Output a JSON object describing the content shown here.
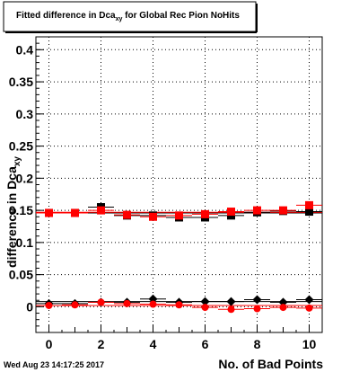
{
  "chart_data": {
    "type": "scatter",
    "title": {
      "pre": "Fitted difference in Dca",
      "sub": "xy",
      "post": " for Global Rec Pion NoHits"
    },
    "xlabel": "No. of Bad Points",
    "ylabel": "difference in Dca",
    "ylabel_sub": "xy",
    "xlim": [
      -0.5,
      10.5
    ],
    "ylim": [
      -0.04,
      0.42
    ],
    "x_ticks": [
      0,
      2,
      4,
      6,
      8,
      10
    ],
    "y_ticks": [
      0,
      0.05,
      0.1,
      0.15,
      0.2,
      0.25,
      0.3,
      0.35,
      0.4
    ],
    "y_tick_labels": [
      "0",
      "0.05",
      "0.1",
      "0.15",
      "0.2",
      "0.25",
      "0.3",
      "0.35",
      "0.4"
    ],
    "grid": true,
    "series": [
      {
        "marker": "square",
        "color": "#000000",
        "x": [
          0,
          1,
          2,
          3,
          4,
          5,
          6,
          7,
          8,
          9,
          10
        ],
        "y": [
          0.146,
          0.146,
          0.155,
          0.142,
          0.142,
          0.139,
          0.139,
          0.142,
          0.147,
          0.149,
          0.148
        ],
        "fit": 0.146
      },
      {
        "marker": "square",
        "color": "#ff0000",
        "x": [
          0,
          1,
          2,
          3,
          4,
          5,
          6,
          7,
          8,
          9,
          10
        ],
        "y": [
          0.146,
          0.146,
          0.15,
          0.143,
          0.14,
          0.142,
          0.144,
          0.148,
          0.15,
          0.15,
          0.158
        ],
        "fit": 0.147
      },
      {
        "marker": "diamond",
        "color": "#000000",
        "x": [
          0,
          1,
          2,
          3,
          4,
          5,
          6,
          7,
          8,
          9,
          10
        ],
        "y": [
          0.005,
          0.005,
          0.007,
          0.007,
          0.012,
          0.007,
          0.008,
          0.008,
          0.011,
          0.007,
          0.011
        ],
        "fit": 0.008
      },
      {
        "marker": "circle",
        "color": "#ff0000",
        "x": [
          0,
          1,
          2,
          3,
          4,
          5,
          6,
          7,
          8,
          9,
          10
        ],
        "y": [
          0.002,
          0.003,
          0.007,
          0.005,
          0.004,
          0.003,
          -0.001,
          -0.004,
          -0.003,
          -0.001,
          -0.002
        ],
        "fit": 0.002
      }
    ]
  },
  "timestamp": "Wed Aug 23 14:17:25 2017"
}
